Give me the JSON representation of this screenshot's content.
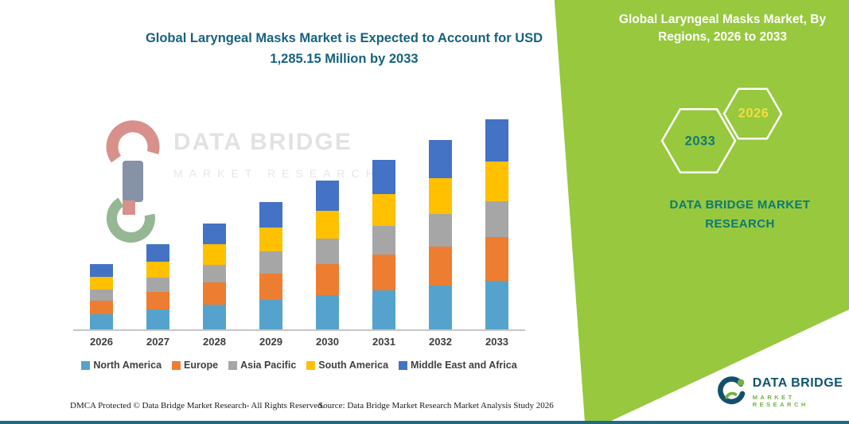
{
  "title": {
    "line1": "Global Laryngeal Masks Market is Expected to Account for USD",
    "line2": "1,285.15 Million by 2033",
    "color": "#17627F"
  },
  "chart_data": {
    "type": "bar",
    "stacked": true,
    "title": "Global Laryngeal Masks Market is Expected to Account for USD 1,285.15 Million by 2033",
    "unit": "USD Million",
    "categories": [
      "2026",
      "2027",
      "2028",
      "2029",
      "2030",
      "2031",
      "2032",
      "2033"
    ],
    "series": [
      {
        "name": "North America",
        "color": "#55A3CC",
        "values": [
          92,
          120,
          150,
          179,
          209,
          238,
          266,
          295.15
        ]
      },
      {
        "name": "Europe",
        "color": "#ED7D31",
        "values": [
          84,
          109,
          136,
          164,
          191,
          218,
          243,
          270
        ]
      },
      {
        "name": "Asia Pacific",
        "color": "#A6A6A6",
        "values": [
          68,
          88,
          110,
          133,
          155,
          176,
          197,
          219
        ]
      },
      {
        "name": "South America",
        "color": "#FFC000",
        "values": [
          76,
          99,
          124,
          148,
          173,
          197,
          220,
          244
        ]
      },
      {
        "name": "Middle East and Africa",
        "color": "#4472C4",
        "values": [
          80,
          104,
          130,
          156,
          182,
          208,
          232,
          257
        ]
      }
    ],
    "totals": [
      400,
      520,
      650,
      780,
      910,
      1037,
      1158,
      1285.15
    ],
    "ylim": [
      0,
      1325
    ],
    "grid": false,
    "legend_position": "bottom",
    "xlabel": "",
    "ylabel": ""
  },
  "panel": {
    "bg_color": "#97C83E",
    "title_line1": "Global Laryngeal Masks Market, By",
    "title_line2": "Regions, 2026 to 2033",
    "hexagon_back_label": "2033",
    "hexagon_back_color": "#0E7A74",
    "hexagon_front_label": "2026",
    "hexagon_front_color": "#F2DC3F",
    "brand_line1": "DATA BRIDGE MARKET",
    "brand_line2": "RESEARCH",
    "brand_color": "#0D7A74"
  },
  "watermark": {
    "brand": "DATA BRIDGE",
    "sub": "MARKET RESEARCH"
  },
  "logo": {
    "brand": "DATA BRIDGE",
    "sub": "MARKET RESEARCH"
  },
  "footer": {
    "dmca": "DMCA Protected © Data Bridge Market Research-  All Rights Reserved.",
    "source": "Source: Data Bridge Market Research  Market Analysis Study 2026",
    "bottom_bar_color": "#1E6B86"
  }
}
